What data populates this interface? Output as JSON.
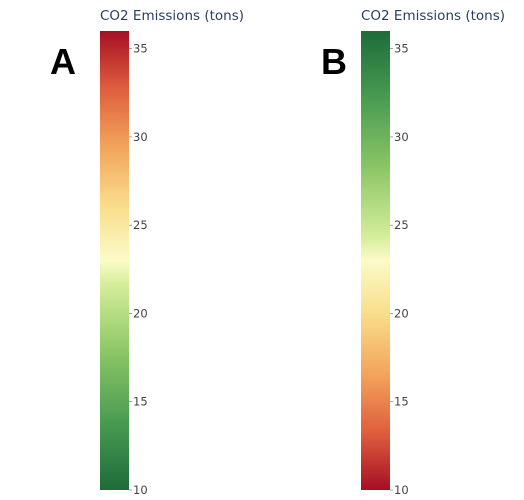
{
  "panels": [
    {
      "letter": "A",
      "chart_data": {
        "type": "colorbar",
        "title": "CO2 Emissions (tons)",
        "range": [
          10,
          36
        ],
        "ticks": [
          10,
          15,
          20,
          25,
          30,
          35
        ],
        "colorscale": [
          [
            0.0,
            "#1e6b3a"
          ],
          [
            0.15,
            "#4a9c52"
          ],
          [
            0.3,
            "#8cc665"
          ],
          [
            0.45,
            "#d6ee9c"
          ],
          [
            0.5,
            "#fbfbc8"
          ],
          [
            0.62,
            "#f9dc8a"
          ],
          [
            0.75,
            "#f2a35b"
          ],
          [
            0.88,
            "#dd5b3c"
          ],
          [
            1.0,
            "#a50f25"
          ]
        ]
      }
    },
    {
      "letter": "B",
      "chart_data": {
        "type": "colorbar",
        "title": "CO2 Emissions (tons)",
        "range": [
          10,
          36
        ],
        "ticks": [
          10,
          15,
          20,
          25,
          30,
          35
        ],
        "colorscale": [
          [
            0.0,
            "#a50f25"
          ],
          [
            0.12,
            "#dd5b3c"
          ],
          [
            0.25,
            "#f2a35b"
          ],
          [
            0.38,
            "#f9dc8a"
          ],
          [
            0.5,
            "#fbfbc8"
          ],
          [
            0.55,
            "#d6ee9c"
          ],
          [
            0.7,
            "#8cc665"
          ],
          [
            0.85,
            "#4a9c52"
          ],
          [
            1.0,
            "#1e6b3a"
          ]
        ]
      }
    }
  ]
}
